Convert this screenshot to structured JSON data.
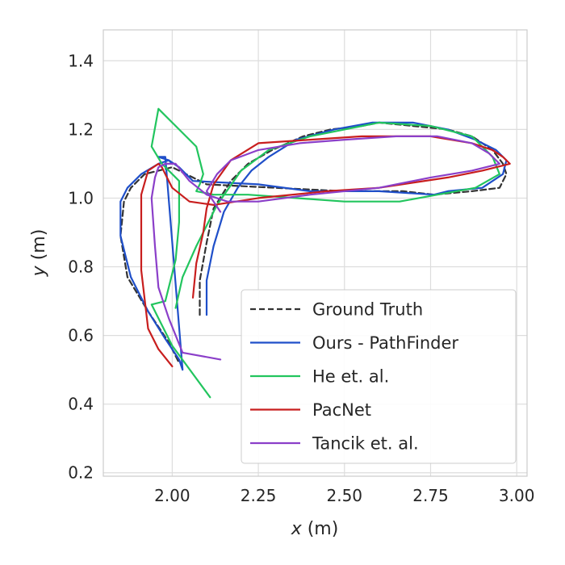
{
  "chart_data": {
    "type": "line",
    "xlabel": {
      "var": "x",
      "unit": " (m)"
    },
    "ylabel": {
      "var": "y",
      "unit": " (m)"
    },
    "xlim": [
      1.8,
      3.03
    ],
    "ylim": [
      0.19,
      1.49
    ],
    "xticks": [
      2.0,
      2.25,
      2.5,
      2.75,
      3.0
    ],
    "xtick_labels": [
      "2.00",
      "2.25",
      "2.50",
      "2.75",
      "3.00"
    ],
    "yticks": [
      0.2,
      0.4,
      0.6,
      0.8,
      1.0,
      1.2,
      1.4
    ],
    "ytick_labels": [
      "0.2",
      "0.4",
      "0.6",
      "0.8",
      "1.0",
      "1.2",
      "1.4"
    ],
    "grid": true,
    "legend_position": "lower-right",
    "series": [
      {
        "name": "Ground Truth",
        "color": "#333333",
        "dashed": true,
        "x": [
          2.08,
          2.08,
          2.1,
          2.12,
          2.17,
          2.22,
          2.29,
          2.38,
          2.46,
          2.55,
          2.6,
          2.7,
          2.8,
          2.87,
          2.93,
          2.96,
          2.97,
          2.95,
          2.87,
          2.76,
          2.67,
          2.5,
          2.3,
          2.1,
          2.06,
          2.0,
          1.92,
          1.88,
          1.86,
          1.85,
          1.87,
          1.93,
          1.99,
          2.02
        ],
        "y": [
          0.66,
          0.76,
          0.87,
          0.97,
          1.05,
          1.1,
          1.14,
          1.18,
          1.2,
          1.21,
          1.22,
          1.21,
          1.2,
          1.18,
          1.14,
          1.1,
          1.07,
          1.03,
          1.02,
          1.01,
          1.02,
          1.02,
          1.03,
          1.04,
          1.06,
          1.09,
          1.07,
          1.03,
          0.99,
          0.89,
          0.77,
          0.67,
          0.58,
          0.52
        ]
      },
      {
        "name": "Ours - PathFinder",
        "color": "#1f4fc9",
        "dashed": false,
        "x": [
          2.1,
          2.1,
          2.12,
          2.15,
          2.19,
          2.23,
          2.28,
          2.36,
          2.47,
          2.58,
          2.6,
          2.7,
          2.8,
          2.88,
          2.94,
          2.97,
          2.96,
          2.9,
          2.8,
          2.76,
          2.6,
          2.4,
          2.25,
          2.06,
          2.04,
          2.02,
          1.99,
          1.96,
          1.91,
          1.87,
          1.85,
          1.85,
          1.88,
          1.93,
          1.98,
          2.02,
          2.03,
          1.98,
          1.96,
          1.99,
          2.0
        ],
        "y": [
          0.66,
          0.76,
          0.86,
          0.96,
          1.03,
          1.08,
          1.12,
          1.17,
          1.2,
          1.22,
          1.22,
          1.22,
          1.2,
          1.17,
          1.14,
          1.11,
          1.07,
          1.03,
          1.02,
          1.01,
          1.02,
          1.02,
          1.04,
          1.05,
          1.07,
          1.09,
          1.11,
          1.1,
          1.07,
          1.03,
          0.99,
          0.89,
          0.77,
          0.67,
          0.59,
          0.53,
          0.5,
          1.12,
          1.12,
          1.11,
          1.1
        ]
      },
      {
        "name": "He et. al.",
        "color": "#22c55e",
        "dashed": false,
        "x": [
          2.01,
          2.03,
          2.07,
          2.13,
          2.2,
          2.28,
          2.4,
          2.5,
          2.6,
          2.75,
          2.87,
          2.93,
          2.95,
          2.88,
          2.77,
          2.66,
          2.5,
          2.36,
          2.22,
          2.12,
          2.07,
          2.08,
          2.09,
          2.07,
          2.0,
          1.96,
          1.94,
          1.97,
          2.02,
          2.02,
          2.01,
          1.98,
          1.94,
          2.0,
          2.11
        ],
        "y": [
          0.68,
          0.77,
          0.86,
          0.98,
          1.08,
          1.14,
          1.18,
          1.2,
          1.22,
          1.21,
          1.18,
          1.12,
          1.07,
          1.03,
          1.01,
          0.99,
          0.99,
          1.0,
          1.01,
          1.01,
          1.02,
          1.04,
          1.07,
          1.15,
          1.22,
          1.26,
          1.15,
          1.1,
          1.05,
          0.93,
          0.82,
          0.7,
          0.69,
          0.57,
          0.42
        ]
      },
      {
        "name": "PacNet",
        "color": "#c81e1e",
        "dashed": false,
        "x": [
          2.06,
          2.07,
          2.09,
          2.1,
          2.12,
          2.17,
          2.25,
          2.4,
          2.55,
          2.75,
          2.87,
          2.93,
          2.96,
          2.98,
          2.9,
          2.8,
          2.6,
          2.45,
          2.25,
          2.12,
          2.05,
          2.0,
          1.98,
          1.97,
          1.96,
          1.93,
          1.91,
          1.91,
          1.93,
          1.96,
          2.0
        ],
        "y": [
          0.71,
          0.81,
          0.9,
          0.97,
          1.04,
          1.11,
          1.16,
          1.17,
          1.18,
          1.18,
          1.16,
          1.14,
          1.12,
          1.1,
          1.08,
          1.06,
          1.03,
          1.02,
          1.0,
          0.98,
          0.99,
          1.03,
          1.07,
          1.09,
          1.1,
          1.08,
          1.01,
          0.79,
          0.62,
          0.56,
          0.51
        ]
      },
      {
        "name": "Tancik et. al.",
        "color": "#8b3fc9",
        "dashed": false,
        "x": [
          2.14,
          2.12,
          2.1,
          2.13,
          2.17,
          2.25,
          2.37,
          2.5,
          2.65,
          2.77,
          2.87,
          2.92,
          2.95,
          2.87,
          2.75,
          2.6,
          2.4,
          2.25,
          2.16,
          2.1,
          2.05,
          2.01,
          1.98,
          1.96,
          1.95,
          1.94,
          1.95,
          1.96,
          1.99,
          2.03,
          2.14
        ],
        "y": [
          0.96,
          0.99,
          1.02,
          1.07,
          1.11,
          1.14,
          1.16,
          1.17,
          1.18,
          1.18,
          1.16,
          1.13,
          1.1,
          1.08,
          1.06,
          1.03,
          1.01,
          0.99,
          0.99,
          1.01,
          1.05,
          1.1,
          1.1,
          1.09,
          1.06,
          1.0,
          0.86,
          0.74,
          0.65,
          0.55,
          0.53
        ]
      }
    ]
  }
}
